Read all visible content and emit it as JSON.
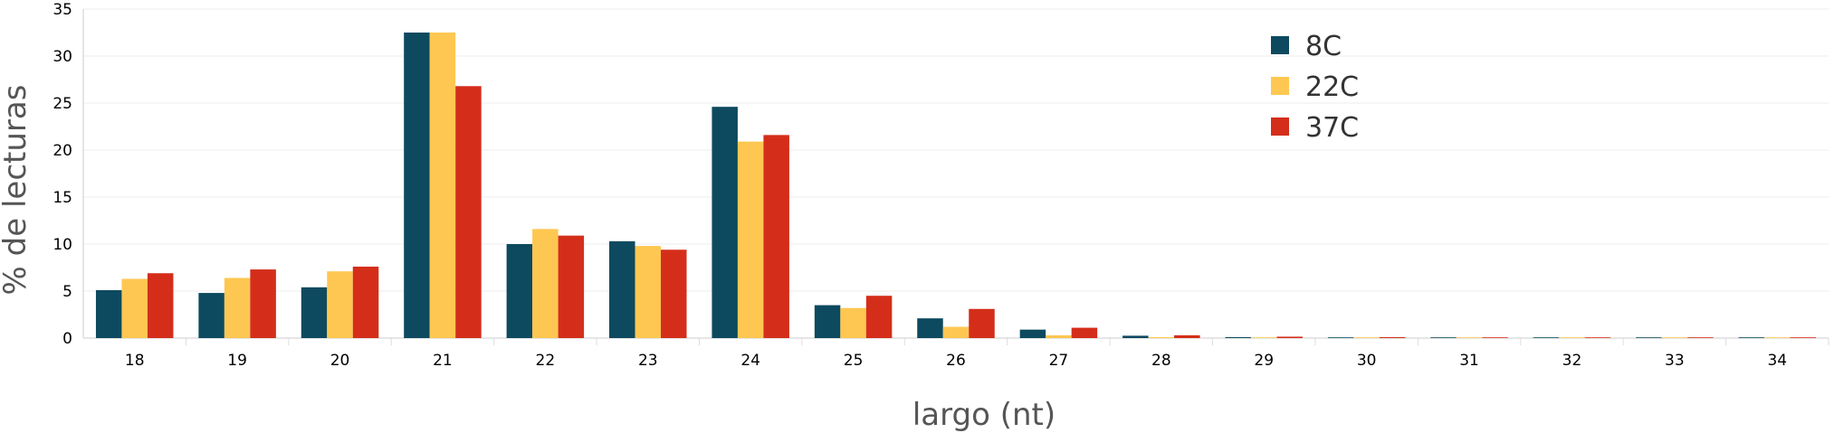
{
  "chart_data": {
    "type": "bar",
    "xlabel": "largo (nt)",
    "ylabel": "% de lecturas",
    "ylim": [
      0,
      35
    ],
    "yticks": [
      0,
      5,
      10,
      15,
      20,
      25,
      30,
      35
    ],
    "grid": true,
    "legend_position": "top-right",
    "categories": [
      "18",
      "19",
      "20",
      "21",
      "22",
      "23",
      "24",
      "25",
      "26",
      "27",
      "28",
      "29",
      "30",
      "31",
      "32",
      "33",
      "34"
    ],
    "series": [
      {
        "name": "8C",
        "color": "#0d4a5f",
        "values": [
          5.1,
          4.8,
          5.4,
          32.5,
          10.0,
          10.3,
          24.6,
          3.5,
          2.1,
          0.9,
          0.25,
          0.1,
          0.05,
          0.03,
          0.02,
          0.01,
          0.01
        ]
      },
      {
        "name": "22C",
        "color": "#fec751",
        "values": [
          6.3,
          6.4,
          7.1,
          32.5,
          11.6,
          9.8,
          20.9,
          3.2,
          1.2,
          0.3,
          0.1,
          0.04,
          0.02,
          0.01,
          0.01,
          0.01,
          0.01
        ]
      },
      {
        "name": "37C",
        "color": "#d42e1a",
        "values": [
          6.9,
          7.3,
          7.6,
          26.8,
          10.9,
          9.4,
          21.6,
          4.5,
          3.1,
          1.1,
          0.3,
          0.15,
          0.1,
          0.05,
          0.03,
          0.02,
          0.02
        ]
      }
    ]
  }
}
